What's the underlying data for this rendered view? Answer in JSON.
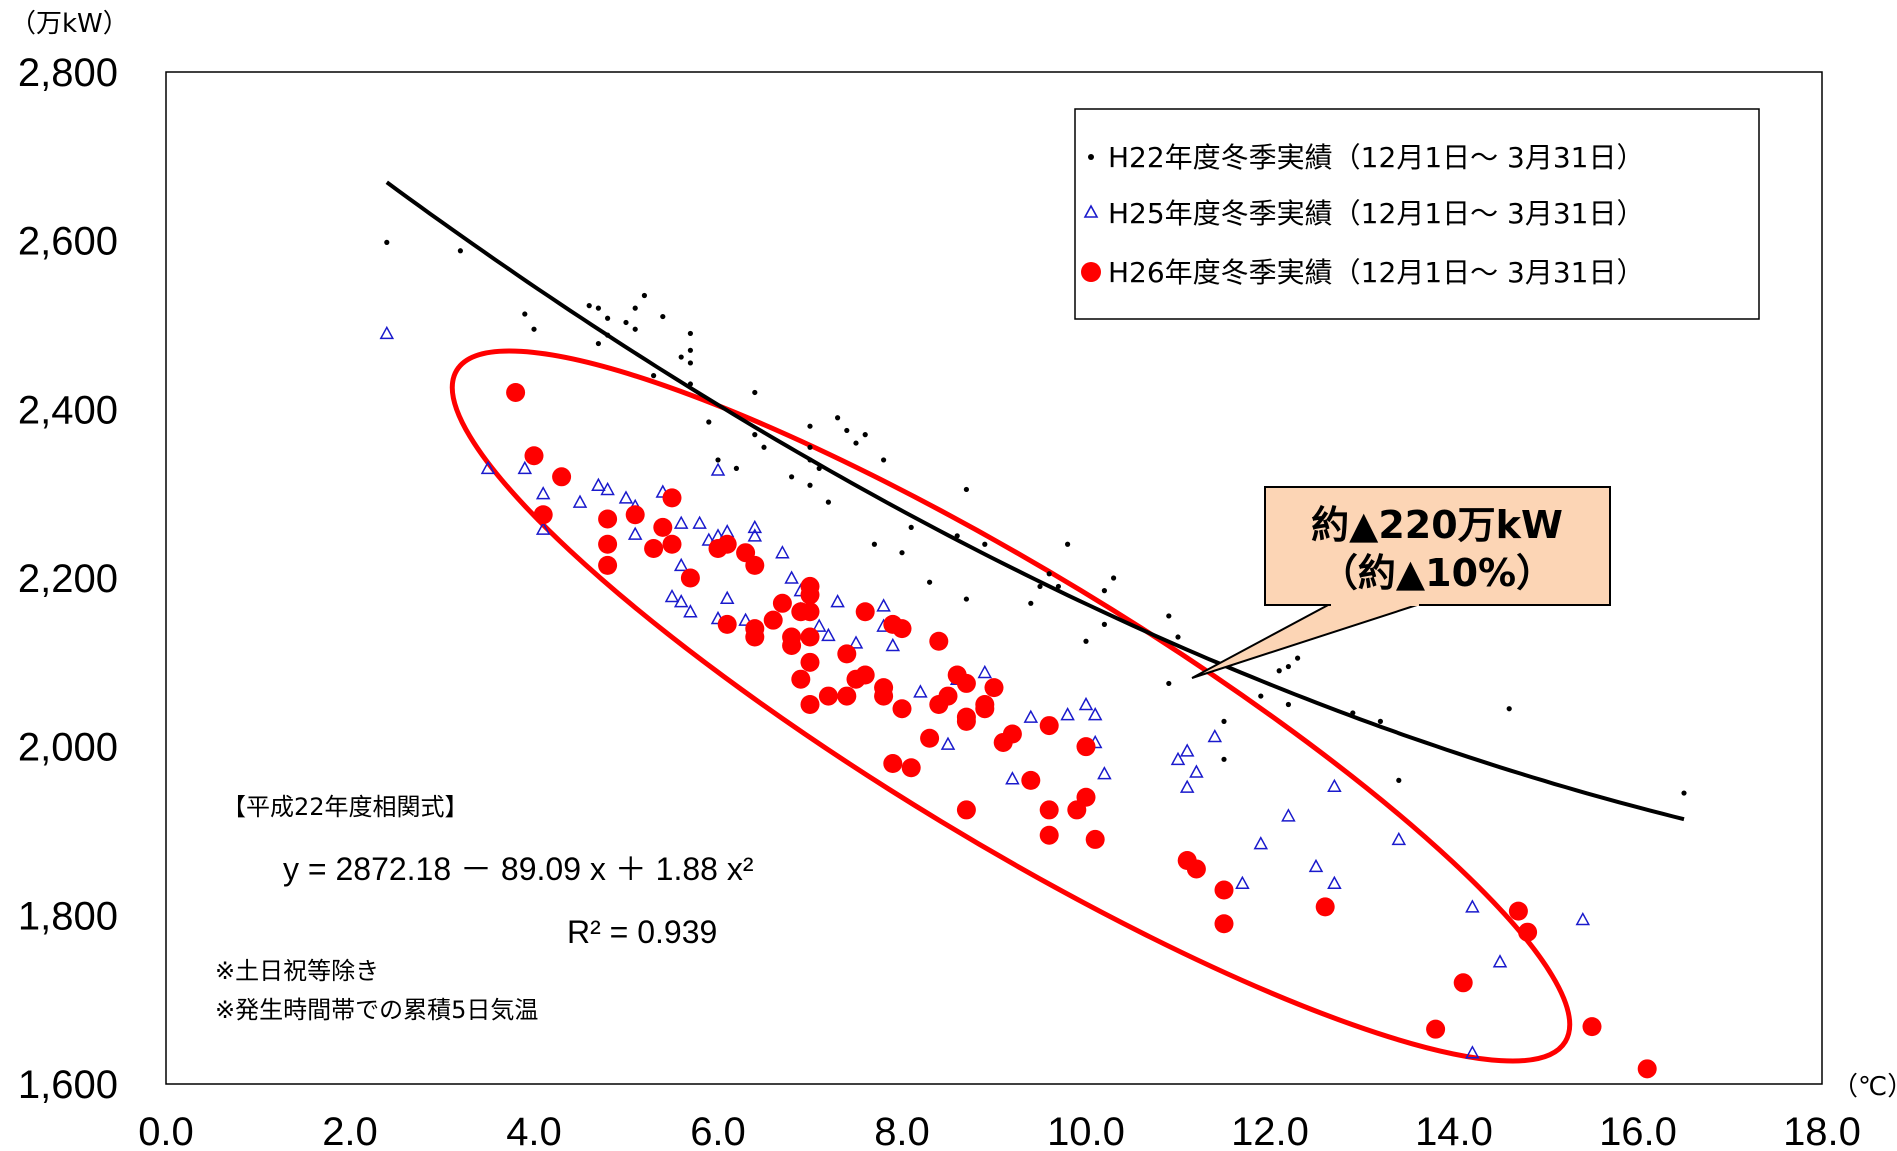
{
  "chart_data": {
    "type": "scatter",
    "y_unit": "（万kW）",
    "x_unit": "（℃）",
    "xlim": [
      0,
      18
    ],
    "ylim": [
      1600,
      2800
    ],
    "x_ticks": [
      "0.0",
      "2.0",
      "4.0",
      "6.0",
      "8.0",
      "10.0",
      "12.0",
      "14.0",
      "16.0",
      "18.0"
    ],
    "y_ticks": [
      "1,600",
      "1,800",
      "2,000",
      "2,200",
      "2,400",
      "2,600",
      "2,800"
    ],
    "grid": false,
    "legend_position": "top-right",
    "series": [
      {
        "name": "H22年度冬季実績（12月1日～ 3月31日）",
        "marker": "dot",
        "color": "#000000",
        "points": [
          [
            2.4,
            2598
          ],
          [
            3.2,
            2588
          ],
          [
            3.9,
            2513
          ],
          [
            4.0,
            2495
          ],
          [
            4.6,
            2523
          ],
          [
            4.7,
            2520
          ],
          [
            4.8,
            2508
          ],
          [
            4.7,
            2478
          ],
          [
            4.8,
            2488
          ],
          [
            5.0,
            2503
          ],
          [
            5.1,
            2495
          ],
          [
            5.1,
            2520
          ],
          [
            5.2,
            2535
          ],
          [
            5.4,
            2510
          ],
          [
            5.6,
            2462
          ],
          [
            5.7,
            2470
          ],
          [
            5.7,
            2490
          ],
          [
            5.7,
            2455
          ],
          [
            5.7,
            2430
          ],
          [
            5.3,
            2440
          ],
          [
            5.9,
            2385
          ],
          [
            6.0,
            2340
          ],
          [
            6.2,
            2330
          ],
          [
            6.4,
            2420
          ],
          [
            6.4,
            2370
          ],
          [
            6.5,
            2355
          ],
          [
            6.8,
            2320
          ],
          [
            7.0,
            2380
          ],
          [
            7.0,
            2355
          ],
          [
            7.0,
            2340
          ],
          [
            7.0,
            2310
          ],
          [
            7.1,
            2330
          ],
          [
            7.3,
            2390
          ],
          [
            7.4,
            2375
          ],
          [
            7.6,
            2370
          ],
          [
            7.5,
            2360
          ],
          [
            7.2,
            2290
          ],
          [
            7.8,
            2340
          ],
          [
            7.7,
            2240
          ],
          [
            8.1,
            2260
          ],
          [
            8.0,
            2230
          ],
          [
            8.6,
            2250
          ],
          [
            8.7,
            2305
          ],
          [
            8.7,
            2175
          ],
          [
            8.3,
            2195
          ],
          [
            8.9,
            2240
          ],
          [
            9.4,
            2170
          ],
          [
            9.5,
            2190
          ],
          [
            9.6,
            2205
          ],
          [
            9.7,
            2190
          ],
          [
            9.8,
            2240
          ],
          [
            10.0,
            2125
          ],
          [
            10.2,
            2185
          ],
          [
            10.3,
            2200
          ],
          [
            10.2,
            2145
          ],
          [
            10.9,
            2155
          ],
          [
            10.9,
            2075
          ],
          [
            11.0,
            2130
          ],
          [
            11.5,
            2030
          ],
          [
            11.5,
            1985
          ],
          [
            11.9,
            2060
          ],
          [
            12.1,
            2090
          ],
          [
            12.2,
            2095
          ],
          [
            12.3,
            2105
          ],
          [
            12.2,
            2050
          ],
          [
            12.9,
            2040
          ],
          [
            13.2,
            2030
          ],
          [
            13.4,
            1960
          ],
          [
            14.6,
            2045
          ],
          [
            16.5,
            1945
          ]
        ]
      },
      {
        "name": "H25年度冬季実績（12月1日～ 3月31日）",
        "marker": "triangle",
        "color": "#1a1acc",
        "points": [
          [
            2.4,
            2490
          ],
          [
            3.5,
            2330
          ],
          [
            3.9,
            2330
          ],
          [
            4.1,
            2300
          ],
          [
            4.1,
            2258
          ],
          [
            4.5,
            2290
          ],
          [
            4.7,
            2310
          ],
          [
            4.8,
            2305
          ],
          [
            5.0,
            2295
          ],
          [
            5.1,
            2285
          ],
          [
            5.1,
            2252
          ],
          [
            5.4,
            2302
          ],
          [
            5.4,
            2260
          ],
          [
            5.6,
            2265
          ],
          [
            5.6,
            2215
          ],
          [
            5.8,
            2265
          ],
          [
            5.9,
            2245
          ],
          [
            6.0,
            2250
          ],
          [
            6.1,
            2255
          ],
          [
            6.0,
            2328
          ],
          [
            6.4,
            2260
          ],
          [
            6.4,
            2250
          ],
          [
            5.5,
            2178
          ],
          [
            5.6,
            2172
          ],
          [
            5.7,
            2160
          ],
          [
            6.0,
            2152
          ],
          [
            6.1,
            2176
          ],
          [
            6.3,
            2150
          ],
          [
            6.7,
            2230
          ],
          [
            6.8,
            2200
          ],
          [
            6.9,
            2185
          ],
          [
            6.9,
            2163
          ],
          [
            7.1,
            2143
          ],
          [
            7.2,
            2132
          ],
          [
            7.3,
            2172
          ],
          [
            7.5,
            2123
          ],
          [
            7.8,
            2167
          ],
          [
            7.8,
            2143
          ],
          [
            7.9,
            2120
          ],
          [
            8.2,
            2065
          ],
          [
            8.5,
            2003
          ],
          [
            8.6,
            2080
          ],
          [
            8.9,
            2088
          ],
          [
            9.2,
            1962
          ],
          [
            9.4,
            2035
          ],
          [
            9.8,
            2038
          ],
          [
            10.0,
            2050
          ],
          [
            10.1,
            2038
          ],
          [
            10.1,
            2005
          ],
          [
            10.2,
            1968
          ],
          [
            11.0,
            1985
          ],
          [
            11.1,
            1995
          ],
          [
            11.2,
            1970
          ],
          [
            11.1,
            1952
          ],
          [
            11.4,
            2012
          ],
          [
            11.7,
            1838
          ],
          [
            11.9,
            1885
          ],
          [
            12.2,
            1918
          ],
          [
            12.5,
            1858
          ],
          [
            12.7,
            1838
          ],
          [
            12.7,
            1953
          ],
          [
            13.4,
            1890
          ],
          [
            14.2,
            1810
          ],
          [
            14.2,
            1637
          ],
          [
            14.5,
            1745
          ],
          [
            15.4,
            1795
          ]
        ]
      },
      {
        "name": "H26年度冬季実績（12月1日～ 3月31日）",
        "marker": "circle",
        "color": "#ff0000",
        "points": [
          [
            3.8,
            2420
          ],
          [
            4.0,
            2345
          ],
          [
            4.1,
            2275
          ],
          [
            4.3,
            2320
          ],
          [
            4.8,
            2270
          ],
          [
            4.8,
            2240
          ],
          [
            4.8,
            2215
          ],
          [
            5.1,
            2275
          ],
          [
            5.3,
            2235
          ],
          [
            5.4,
            2260
          ],
          [
            5.5,
            2295
          ],
          [
            5.5,
            2240
          ],
          [
            5.7,
            2200
          ],
          [
            6.0,
            2235
          ],
          [
            6.1,
            2240
          ],
          [
            6.3,
            2230
          ],
          [
            6.4,
            2215
          ],
          [
            6.1,
            2145
          ],
          [
            6.4,
            2140
          ],
          [
            6.4,
            2130
          ],
          [
            6.6,
            2150
          ],
          [
            6.7,
            2170
          ],
          [
            6.8,
            2120
          ],
          [
            6.8,
            2130
          ],
          [
            6.9,
            2080
          ],
          [
            6.9,
            2160
          ],
          [
            7.0,
            2190
          ],
          [
            7.0,
            2180
          ],
          [
            7.0,
            2160
          ],
          [
            7.0,
            2130
          ],
          [
            7.0,
            2100
          ],
          [
            7.0,
            2050
          ],
          [
            7.2,
            2060
          ],
          [
            7.4,
            2060
          ],
          [
            7.4,
            2110
          ],
          [
            7.5,
            2080
          ],
          [
            7.6,
            2085
          ],
          [
            7.6,
            2160
          ],
          [
            7.8,
            2060
          ],
          [
            7.8,
            2070
          ],
          [
            7.9,
            2145
          ],
          [
            8.0,
            2140
          ],
          [
            8.0,
            2045
          ],
          [
            8.3,
            2010
          ],
          [
            8.4,
            2125
          ],
          [
            8.4,
            2050
          ],
          [
            8.5,
            2060
          ],
          [
            8.6,
            2085
          ],
          [
            8.7,
            2075
          ],
          [
            8.7,
            2035
          ],
          [
            8.7,
            2030
          ],
          [
            7.9,
            1980
          ],
          [
            8.1,
            1975
          ],
          [
            8.7,
            1925
          ],
          [
            8.9,
            2050
          ],
          [
            8.9,
            2045
          ],
          [
            9.0,
            2070
          ],
          [
            9.1,
            2005
          ],
          [
            9.2,
            2015
          ],
          [
            9.4,
            1960
          ],
          [
            9.6,
            2025
          ],
          [
            9.6,
            1925
          ],
          [
            9.6,
            1895
          ],
          [
            9.9,
            1925
          ],
          [
            10.0,
            2000
          ],
          [
            10.0,
            1940
          ],
          [
            10.1,
            1890
          ],
          [
            11.1,
            1865
          ],
          [
            11.2,
            1855
          ],
          [
            11.5,
            1830
          ],
          [
            11.5,
            1790
          ],
          [
            12.6,
            1810
          ],
          [
            13.8,
            1665
          ],
          [
            14.1,
            1720
          ],
          [
            14.7,
            1805
          ],
          [
            14.8,
            1780
          ],
          [
            15.5,
            1668
          ],
          [
            16.1,
            1618
          ]
        ]
      }
    ],
    "trendline": {
      "series": "H22年度冬季実績（12月1日～ 3月31日）",
      "color": "#000000",
      "coefficients": [
        2872.18,
        -89.09,
        1.88
      ],
      "x_range": [
        2.4,
        16.5
      ]
    },
    "annotations": {
      "equation_title": "【平成22年度相関式】",
      "equation": "y = 2872.18 － 89.09 x ＋ 1.88 x²",
      "r_squared": "R² = 0.939",
      "notes": [
        "※土日祝等除き",
        "※発生時間帯での累積5日気温"
      ],
      "callout": [
        "約▲220万kW",
        "（約▲10%）"
      ]
    },
    "highlight_ellipse_color": "#ff0000",
    "callout_fill": "#fcd5b5",
    "callout_border": "#000000"
  }
}
